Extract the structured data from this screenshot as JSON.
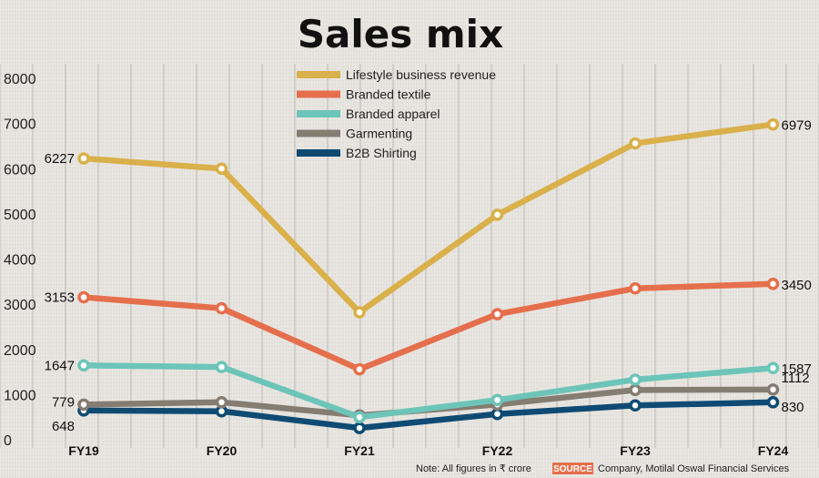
{
  "chart_data": {
    "type": "line",
    "title": "Sales mix",
    "categories": [
      "FY19",
      "FY20",
      "FY21",
      "FY22",
      "FY23",
      "FY24"
    ],
    "ylim": [
      0,
      8000
    ],
    "yticks": [
      "0",
      "1000",
      "2000",
      "3000",
      "4000",
      "5000",
      "6000",
      "7000",
      "8000"
    ],
    "grid": "vertical",
    "legend_position": "top-center",
    "series": [
      {
        "key": "lifestyle",
        "name": "Lifestyle business revenue",
        "color": "#d9b04a",
        "values": [
          6227,
          6000,
          2820,
          4980,
          6560,
          6979
        ],
        "start_label": "6227",
        "end_label": "6979"
      },
      {
        "key": "textile",
        "name": "Branded textile",
        "color": "#e56f4c",
        "values": [
          3153,
          2910,
          1560,
          2780,
          3350,
          3450
        ],
        "start_label": "3153",
        "end_label": "3450"
      },
      {
        "key": "apparel",
        "name": "Branded apparel",
        "color": "#6cc5b8",
        "values": [
          1647,
          1610,
          500,
          880,
          1330,
          1587
        ],
        "start_label": "1647",
        "end_label": "1587"
      },
      {
        "key": "garmenting",
        "name": "Garmenting",
        "color": "#857c72",
        "values": [
          779,
          830,
          540,
          780,
          1100,
          1112
        ],
        "start_label": "779",
        "end_label": "1112"
      },
      {
        "key": "b2b",
        "name": "B2B Shirting",
        "color": "#0f4a73",
        "values": [
          648,
          630,
          260,
          570,
          760,
          830
        ],
        "start_label": "648",
        "end_label": "830"
      }
    ]
  },
  "footer": {
    "note": "Note: All figures in ₹ crore",
    "source_tag": "SOURCE",
    "source_text": "Company, Motilal Oswal Financial Services"
  }
}
